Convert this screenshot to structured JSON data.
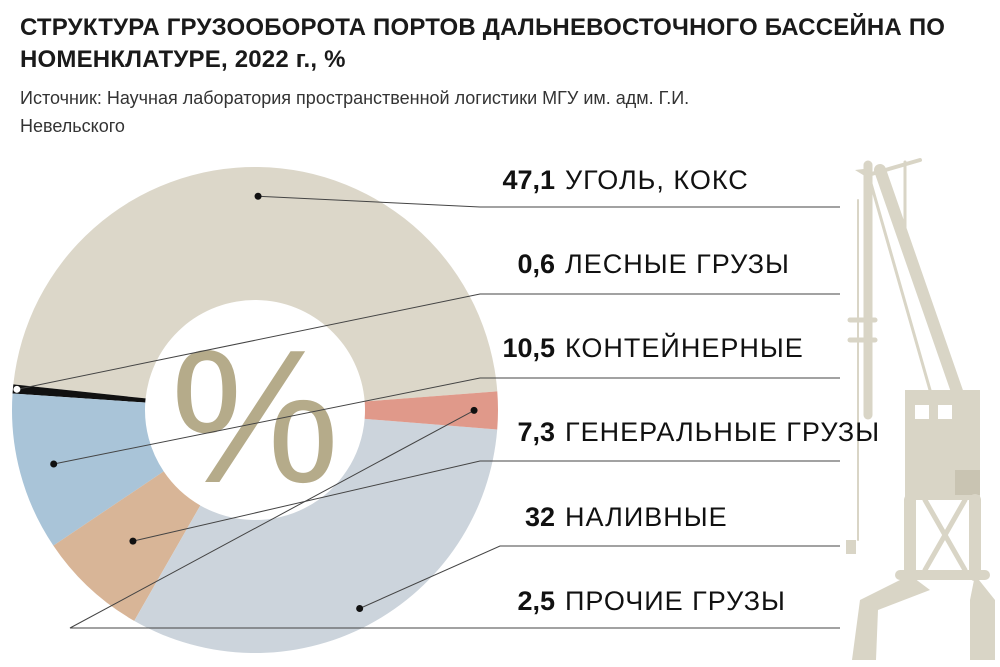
{
  "header": {
    "title": "СТРУКТУРА ГРУЗООБОРОТА ПОРТОВ ДАЛЬНЕВОСТОЧНОГО БАССЕЙНА ПО НОМЕНКЛАТУРЕ, 2022 г., %",
    "source": "Источник: Научная лаборатория пространственной логистики МГУ им. адм. Г.И. Невельского"
  },
  "center_symbol": "%",
  "chart_data": {
    "type": "pie",
    "title": "СТРУКТУРА ГРУЗООБОРОТА ПОРТОВ ДАЛЬНЕВОСТОЧНОГО БАССЕЙНА ПО НОМЕНКЛАТУРЕ, 2022 г., %",
    "donut": true,
    "categories": [
      "УГОЛЬ, КОКС",
      "ЛЕСНЫЕ ГРУЗЫ",
      "КОНТЕЙНЕРНЫЕ",
      "ГЕНЕРАЛЬНЫЕ ГРУЗЫ",
      "НАЛИВНЫЕ",
      "ПРОЧИЕ ГРУЗЫ"
    ],
    "values": [
      47.1,
      0.6,
      10.5,
      7.3,
      32,
      2.5
    ],
    "value_labels": [
      "47,1",
      "0,6",
      "10,5",
      "7,3",
      "32",
      "2,5"
    ],
    "colors": [
      "#dcd7c9",
      "#111111",
      "#a9c4d8",
      "#d8b597",
      "#ccd4dc",
      "#e0998a"
    ],
    "legend_placement": "right"
  },
  "colors": {
    "crane": "#d9d5c6",
    "leader": "#444444"
  },
  "decoration": {
    "illustration": "port-crane-icon"
  }
}
